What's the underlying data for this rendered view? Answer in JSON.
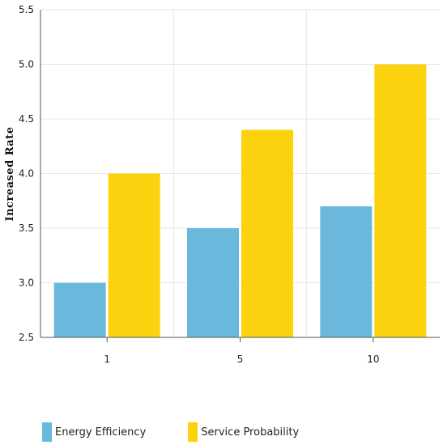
{
  "chart_data": {
    "type": "bar",
    "categories": [
      "1",
      "5",
      "10"
    ],
    "series": [
      {
        "name": "Energy Efficiency",
        "values": [
          3.0,
          3.5,
          3.7
        ],
        "color": "#6ab9dd"
      },
      {
        "name": "Service Probability",
        "values": [
          4.0,
          4.4,
          5.0
        ],
        "color": "#fcd20f"
      }
    ],
    "title": "",
    "xlabel": "",
    "ylabel": "Increased Rate",
    "ylim": [
      2.5,
      5.5
    ],
    "yticks": [
      "2.5",
      "3.0",
      "3.5",
      "4.0",
      "4.5",
      "5.0",
      "5.5"
    ],
    "grid": true,
    "legend_position": "bottom-left"
  }
}
